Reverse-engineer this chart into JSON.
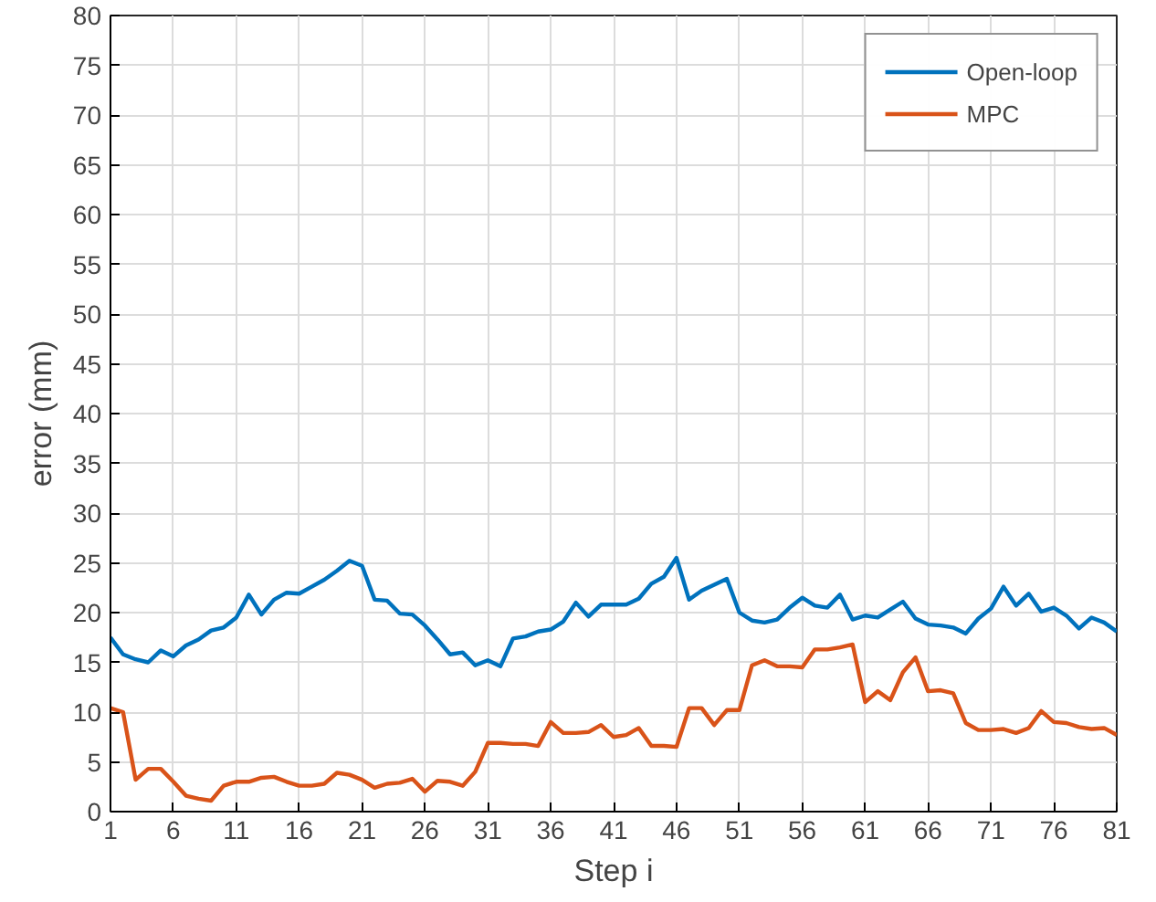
{
  "chart_data": {
    "type": "line",
    "xlabel": "Step i",
    "ylabel": "error (mm)",
    "x": [
      1,
      2,
      3,
      4,
      5,
      6,
      7,
      8,
      9,
      10,
      11,
      12,
      13,
      14,
      15,
      16,
      17,
      18,
      19,
      20,
      21,
      22,
      23,
      24,
      25,
      26,
      27,
      28,
      29,
      30,
      31,
      32,
      33,
      34,
      35,
      36,
      37,
      38,
      39,
      40,
      41,
      42,
      43,
      44,
      45,
      46,
      47,
      48,
      49,
      50,
      51,
      52,
      53,
      54,
      55,
      56,
      57,
      58,
      59,
      60,
      61,
      62,
      63,
      64,
      65,
      66,
      67,
      68,
      69,
      70,
      71,
      72,
      73,
      74,
      75,
      76,
      77,
      78,
      79,
      80,
      81
    ],
    "series": [
      {
        "name": "Open-loop",
        "color": "#0072bd",
        "values": [
          17.5,
          15.8,
          15.3,
          15.0,
          16.2,
          15.6,
          16.7,
          17.3,
          18.2,
          18.5,
          19.5,
          21.8,
          19.8,
          21.3,
          22.0,
          21.9,
          22.6,
          23.3,
          24.2,
          25.2,
          24.7,
          21.3,
          21.2,
          19.9,
          19.8,
          18.7,
          17.3,
          15.8,
          16.0,
          14.7,
          15.2,
          14.6,
          17.4,
          17.6,
          18.1,
          18.3,
          19.1,
          21.0,
          19.6,
          20.8,
          20.8,
          20.8,
          21.4,
          22.9,
          23.6,
          25.5,
          21.3,
          22.2,
          22.8,
          23.4,
          20.0,
          19.2,
          19.0,
          19.3,
          20.5,
          21.5,
          20.7,
          20.5,
          21.8,
          19.3,
          19.7,
          19.5,
          20.3,
          21.1,
          19.4,
          18.8,
          18.7,
          18.5,
          17.9,
          19.4,
          20.4,
          22.6,
          20.7,
          21.9,
          20.1,
          20.5,
          19.7,
          18.4,
          19.5,
          19.0,
          18.1
        ]
      },
      {
        "name": "MPC",
        "color": "#d95319",
        "values": [
          10.4,
          10.0,
          3.2,
          4.3,
          4.3,
          3.0,
          1.6,
          1.3,
          1.1,
          2.6,
          3.0,
          3.0,
          3.4,
          3.5,
          3.0,
          2.6,
          2.6,
          2.8,
          3.9,
          3.7,
          3.2,
          2.4,
          2.8,
          2.9,
          3.3,
          2.0,
          3.1,
          3.0,
          2.6,
          4.0,
          6.9,
          6.9,
          6.8,
          6.8,
          6.6,
          9.0,
          7.9,
          7.9,
          8.0,
          8.7,
          7.5,
          7.7,
          8.4,
          6.6,
          6.6,
          6.5,
          10.4,
          10.4,
          8.7,
          10.2,
          10.2,
          14.7,
          15.2,
          14.6,
          14.6,
          14.5,
          16.3,
          16.3,
          16.5,
          16.8,
          11.0,
          12.1,
          11.2,
          14.0,
          15.5,
          12.1,
          12.2,
          11.9,
          8.9,
          8.2,
          8.2,
          8.3,
          7.9,
          8.4,
          10.1,
          9.0,
          8.9,
          8.5,
          8.3,
          8.4,
          7.7
        ]
      }
    ],
    "xlim": [
      1,
      81
    ],
    "xticks": [
      1,
      6,
      11,
      16,
      21,
      26,
      31,
      36,
      41,
      46,
      51,
      56,
      61,
      66,
      71,
      76,
      81
    ],
    "ylim": [
      0,
      80
    ],
    "yticks": [
      0,
      5,
      10,
      15,
      20,
      25,
      30,
      35,
      40,
      45,
      50,
      55,
      60,
      65,
      70,
      75,
      80
    ],
    "grid": true,
    "legend": "top right",
    "marker": "none",
    "line_style": "solid"
  }
}
